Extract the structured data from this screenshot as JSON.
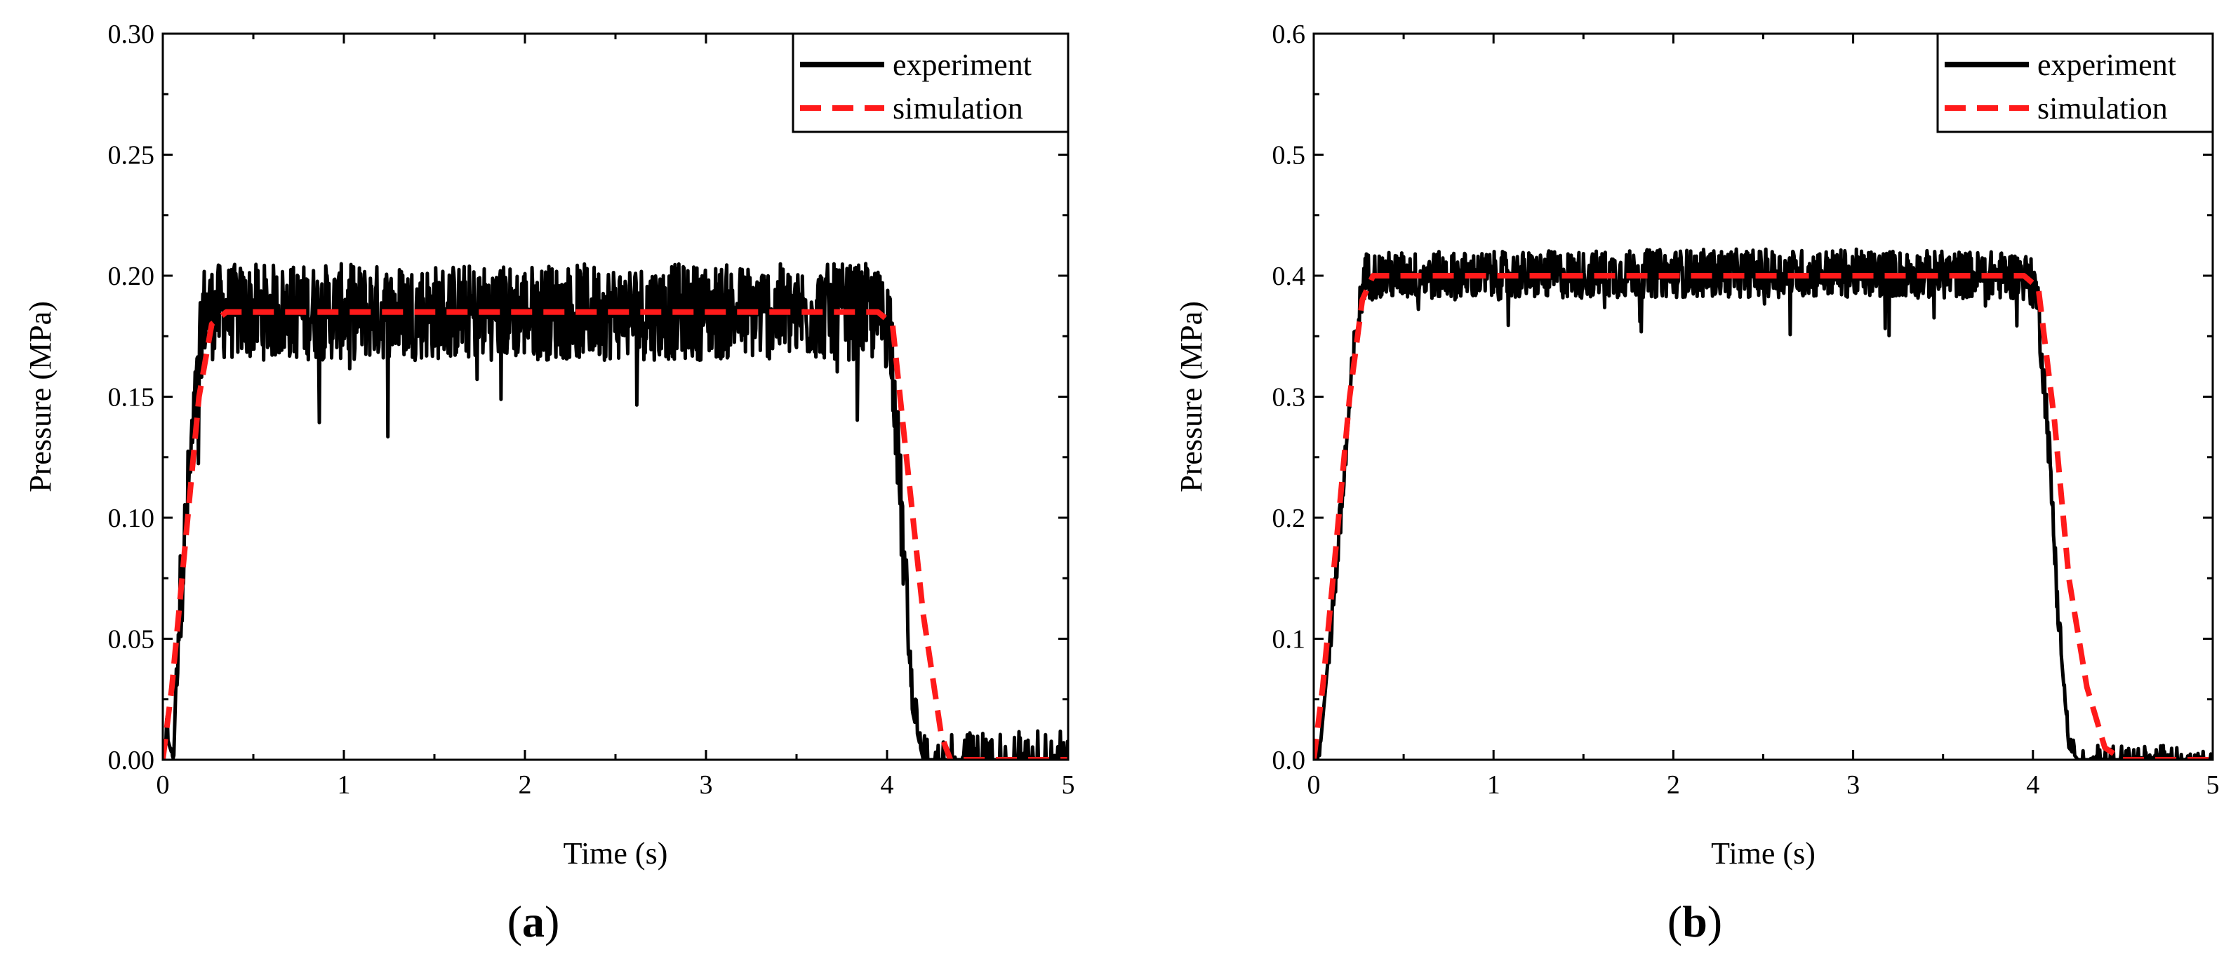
{
  "chart_data": [
    {
      "type": "line",
      "panel_label": "(a)",
      "panel_letter": "a",
      "xlabel": "Time (s)",
      "ylabel": "Pressure (MPa)",
      "xlim": [
        0,
        5
      ],
      "ylim": [
        0,
        0.3
      ],
      "x_ticks": [
        "0",
        "1",
        "2",
        "3",
        "4",
        "5"
      ],
      "y_ticks": [
        "0.00",
        "0.05",
        "0.10",
        "0.15",
        "0.20",
        "0.25",
        "0.30"
      ],
      "legend_position": "top-right",
      "legend": [
        "experiment",
        "simulation"
      ],
      "series": [
        {
          "name": "experiment",
          "color": "#000000",
          "style": "solid",
          "description": "noisy measured signal",
          "points": [
            [
              0,
              0
            ],
            [
              0.02,
              0.01
            ],
            [
              0.06,
              0
            ],
            [
              0.08,
              0.05
            ],
            [
              0.15,
              0.12
            ],
            [
              0.2,
              0.16
            ],
            [
              0.22,
              0.185
            ],
            [
              0.3,
              0.185
            ],
            [
              1.0,
              0.185
            ],
            [
              2.0,
              0.185
            ],
            [
              3.0,
              0.185
            ],
            [
              3.9,
              0.185
            ],
            [
              4.02,
              0.18
            ],
            [
              4.08,
              0.1
            ],
            [
              4.14,
              0.02
            ],
            [
              4.2,
              0.0
            ],
            [
              5.0,
              0.0
            ]
          ],
          "noise_amplitude": 0.02
        },
        {
          "name": "simulation",
          "color": "#ff1a1a",
          "style": "dashed",
          "x": [
            0,
            0.05,
            0.1,
            0.2,
            0.27,
            0.35,
            0.5,
            1,
            2,
            3,
            3.95,
            4.03,
            4.1,
            4.2,
            4.3,
            4.35,
            5
          ],
          "y": [
            0,
            0.03,
            0.07,
            0.15,
            0.18,
            0.185,
            0.185,
            0.185,
            0.185,
            0.185,
            0.185,
            0.18,
            0.13,
            0.06,
            0.01,
            0,
            0
          ]
        }
      ]
    },
    {
      "type": "line",
      "panel_label": "(b)",
      "panel_letter": "b",
      "xlabel": "Time (s)",
      "ylabel": "Pressure (MPa)",
      "xlim": [
        0,
        5
      ],
      "ylim": [
        0,
        0.6
      ],
      "x_ticks": [
        "0",
        "1",
        "2",
        "3",
        "4",
        "5"
      ],
      "y_ticks": [
        "0.0",
        "0.1",
        "0.2",
        "0.3",
        "0.4",
        "0.5",
        "0.6"
      ],
      "legend_position": "top-right",
      "legend": [
        "experiment",
        "simulation"
      ],
      "series": [
        {
          "name": "experiment",
          "color": "#000000",
          "style": "solid",
          "description": "noisy measured signal",
          "points": [
            [
              0,
              0
            ],
            [
              0.03,
              0
            ],
            [
              0.06,
              0.05
            ],
            [
              0.15,
              0.2
            ],
            [
              0.22,
              0.33
            ],
            [
              0.28,
              0.4
            ],
            [
              0.35,
              0.4
            ],
            [
              1.0,
              0.4
            ],
            [
              2.0,
              0.402
            ],
            [
              3.0,
              0.402
            ],
            [
              3.95,
              0.4
            ],
            [
              4.02,
              0.39
            ],
            [
              4.08,
              0.28
            ],
            [
              4.15,
              0.1
            ],
            [
              4.2,
              0.01
            ],
            [
              4.25,
              0.0
            ],
            [
              5.0,
              0.0
            ]
          ],
          "noise_amplitude": 0.02
        },
        {
          "name": "simulation",
          "color": "#ff1a1a",
          "style": "dashed",
          "x": [
            0,
            0.05,
            0.12,
            0.2,
            0.27,
            0.33,
            0.5,
            1,
            2,
            3,
            3.95,
            4.03,
            4.12,
            4.2,
            4.3,
            4.4,
            4.5,
            5
          ],
          "y": [
            0,
            0.06,
            0.17,
            0.3,
            0.38,
            0.4,
            0.4,
            0.4,
            0.4,
            0.4,
            0.4,
            0.39,
            0.28,
            0.15,
            0.06,
            0.01,
            0,
            0
          ]
        }
      ]
    }
  ]
}
